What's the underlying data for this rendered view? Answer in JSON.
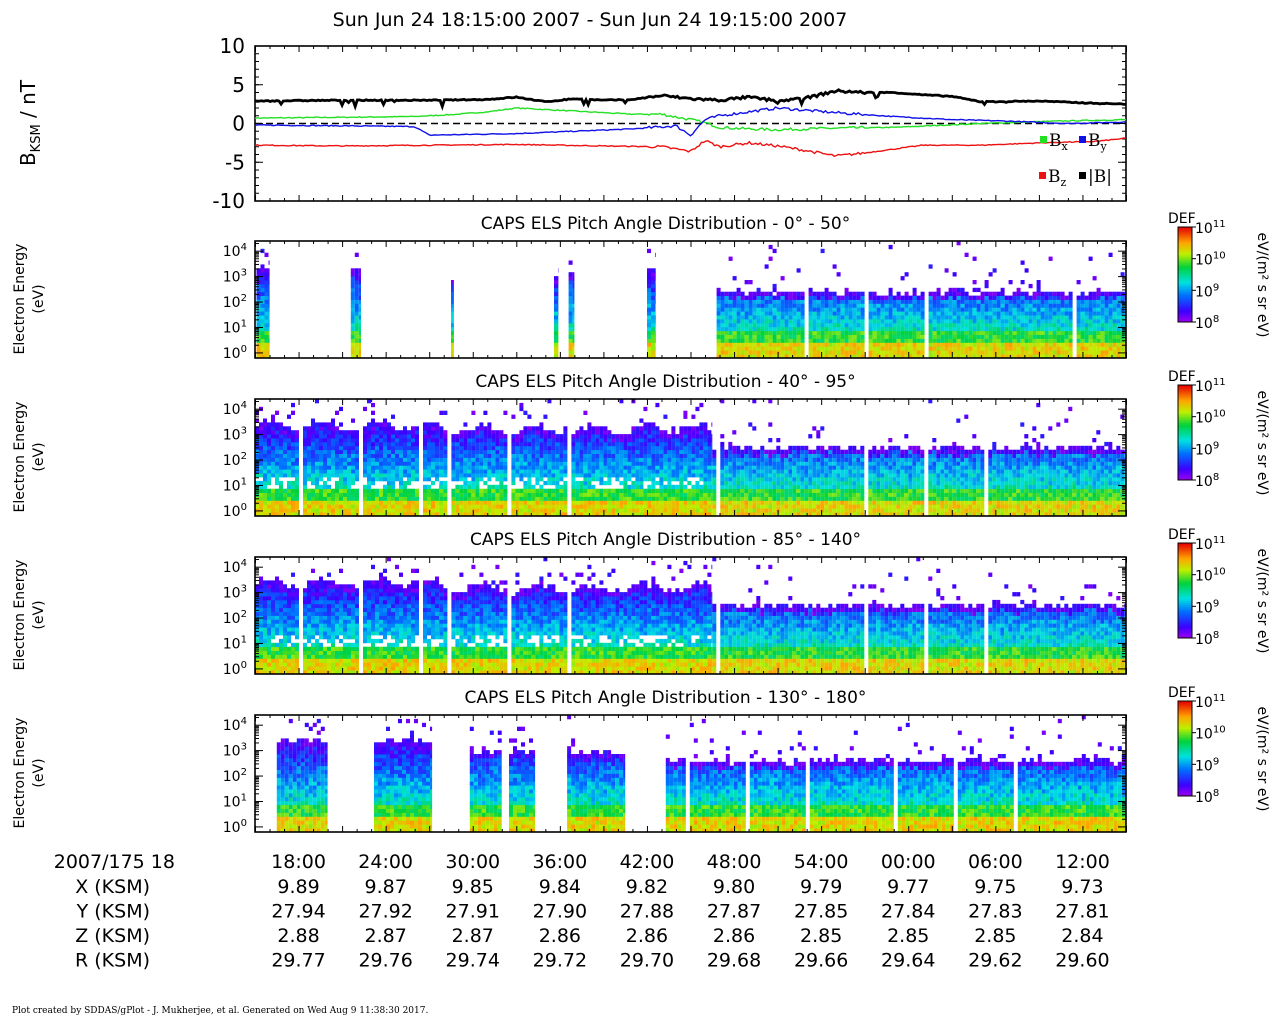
{
  "page_title": "Sun Jun 24 18:15:00 2007 - Sun Jun 24 19:15:00 2007",
  "footer": "Plot created by SDDAS/gPlot - J. Mukherjee, et al.  Generated on Wed Aug 9 11:38:30 2017.",
  "chart_data": [
    {
      "type": "line",
      "ylabel": "B_KSM / nT",
      "ylim": [
        -10,
        10
      ],
      "yticks": [
        -10,
        -5,
        0,
        5,
        10
      ],
      "zero_line": "dashed",
      "x_range_min": [
        0,
        60
      ],
      "legend": [
        {
          "label": "Bx",
          "color": "#22e022"
        },
        {
          "label": "By",
          "color": "#1010e8"
        },
        {
          "label": "Bz",
          "color": "#ee1111"
        },
        {
          "label": "|B|",
          "color": "#000000"
        }
      ],
      "series": [
        {
          "name": "Bx",
          "color": "#22e022",
          "x": [
            0,
            6,
            11,
            14,
            16,
            18,
            22,
            26,
            28,
            30,
            31,
            32,
            34,
            36,
            40,
            44,
            50,
            55,
            60
          ],
          "y": [
            0.7,
            0.8,
            0.9,
            1.2,
            1.5,
            2.0,
            1.6,
            1.2,
            1.2,
            0.5,
            0.1,
            -0.5,
            -0.7,
            -0.8,
            -0.6,
            -0.5,
            0.0,
            0.3,
            0.5
          ]
        },
        {
          "name": "By",
          "color": "#1010e8",
          "x": [
            0,
            6,
            11,
            12,
            18,
            22,
            26,
            29,
            30,
            31,
            32,
            36,
            40,
            44,
            48,
            52,
            56,
            60
          ],
          "y": [
            -0.2,
            -0.3,
            -0.4,
            -1.5,
            -1.3,
            -1.0,
            -0.7,
            -0.3,
            -1.5,
            0.5,
            1.0,
            2.0,
            1.4,
            0.9,
            0.5,
            0.3,
            0.0,
            0.2
          ]
        },
        {
          "name": "Bz",
          "color": "#ee1111",
          "x": [
            0,
            6,
            12,
            18,
            24,
            28,
            30,
            31,
            32,
            34,
            36,
            38,
            40,
            42,
            46,
            50,
            54,
            58,
            60
          ],
          "y": [
            -2.8,
            -2.9,
            -2.8,
            -2.7,
            -2.9,
            -3.0,
            -3.6,
            -2.2,
            -3.0,
            -2.5,
            -2.9,
            -3.5,
            -4.2,
            -3.8,
            -2.8,
            -2.8,
            -2.5,
            -2.3,
            -1.9
          ]
        },
        {
          "name": "|B|",
          "color": "#000000",
          "x": [
            0,
            6,
            12,
            16,
            18,
            20,
            22,
            24,
            26,
            28,
            30,
            32,
            34,
            36,
            38,
            40,
            42,
            44,
            46,
            48,
            50,
            54,
            58,
            60
          ],
          "y": [
            2.9,
            3.0,
            3.0,
            3.1,
            3.4,
            2.8,
            3.2,
            3.0,
            3.1,
            3.6,
            3.2,
            3.0,
            3.4,
            2.9,
            3.3,
            4.2,
            4.0,
            4.0,
            3.7,
            3.5,
            2.8,
            2.9,
            2.6,
            2.5
          ]
        }
      ]
    },
    {
      "type": "heatmap",
      "title": "CAPS ELS Pitch Angle Distribution - 0° - 50°",
      "ylabel": "Electron Energy (eV)",
      "colorbar_title": "DEF",
      "colorbar_unit": "eV/(m² s sr eV)",
      "colorbar_ticks": [
        "10^11",
        "10^10",
        "10^9",
        "10^8"
      ],
      "colorbar_range_log10": [
        8,
        11
      ],
      "y_range_log10": [
        -0.2,
        4.4
      ],
      "yticks": [
        "10^4",
        "10^3",
        "10^2",
        "10^1",
        "10^0"
      ],
      "segments": [
        {
          "x": [
            0.1,
            1.0
          ],
          "top": 3.4,
          "mode": "patch"
        },
        {
          "x": [
            6.6,
            7.3
          ],
          "top": 3.3,
          "mode": "patch"
        },
        {
          "x": [
            13.5,
            13.7
          ],
          "top": 3.0,
          "mode": "patch"
        },
        {
          "x": [
            20.6,
            20.9
          ],
          "top": 3.1,
          "mode": "patch"
        },
        {
          "x": [
            21.6,
            22.0
          ],
          "top": 3.1,
          "mode": "patch"
        },
        {
          "x": [
            27.0,
            27.6
          ],
          "top": 3.3,
          "mode": "patch"
        },
        {
          "x": [
            31.8,
            60
          ],
          "top": 2.4,
          "mode": "full"
        }
      ]
    },
    {
      "type": "heatmap",
      "title": "CAPS ELS Pitch Angle Distribution - 40° - 95°",
      "ylabel": "Electron Energy (eV)",
      "colorbar_title": "DEF",
      "colorbar_unit": "eV/(m² s sr eV)",
      "colorbar_ticks": [
        "10^11",
        "10^10",
        "10^9",
        "10^8"
      ],
      "colorbar_range_log10": [
        8,
        11
      ],
      "y_range_log10": [
        -0.2,
        4.4
      ],
      "yticks": [
        "10^4",
        "10^3",
        "10^2",
        "10^1",
        "10^0"
      ],
      "segments": [
        {
          "x": [
            0,
            12.7
          ],
          "top": 3.4,
          "mode": "patchy"
        },
        {
          "x": [
            12.7,
            31.5
          ],
          "top": 3.2,
          "mode": "patchy"
        },
        {
          "x": [
            31.5,
            60
          ],
          "top": 2.5,
          "mode": "full"
        }
      ]
    },
    {
      "type": "heatmap",
      "title": "CAPS ELS Pitch Angle Distribution - 85° - 140°",
      "ylabel": "Electron Energy (eV)",
      "colorbar_title": "DEF",
      "colorbar_unit": "eV/(m² s sr eV)",
      "colorbar_ticks": [
        "10^11",
        "10^10",
        "10^9",
        "10^8"
      ],
      "colorbar_range_log10": [
        8,
        11
      ],
      "y_range_log10": [
        -0.2,
        4.4
      ],
      "yticks": [
        "10^4",
        "10^3",
        "10^2",
        "10^1",
        "10^0"
      ],
      "segments": [
        {
          "x": [
            0,
            12.7
          ],
          "top": 3.4,
          "mode": "patchy"
        },
        {
          "x": [
            12.7,
            31.5
          ],
          "top": 3.2,
          "mode": "patchy"
        },
        {
          "x": [
            31.5,
            60
          ],
          "top": 2.5,
          "mode": "full"
        }
      ]
    },
    {
      "type": "heatmap",
      "title": "CAPS ELS Pitch Angle Distribution - 130° - 180°",
      "ylabel": "Electron Energy (eV)",
      "colorbar_title": "DEF",
      "colorbar_unit": "eV/(m² s sr eV)",
      "colorbar_ticks": [
        "10^11",
        "10^10",
        "10^9",
        "10^8"
      ],
      "colorbar_range_log10": [
        8,
        11
      ],
      "y_range_log10": [
        -0.2,
        4.4
      ],
      "yticks": [
        "10^4",
        "10^3",
        "10^2",
        "10^1",
        "10^0"
      ],
      "segments": [
        {
          "x": [
            1.5,
            5.0
          ],
          "top": 3.4,
          "mode": "patch"
        },
        {
          "x": [
            8.2,
            12.2
          ],
          "top": 3.4,
          "mode": "patch"
        },
        {
          "x": [
            14.8,
            17.0
          ],
          "top": 3.0,
          "mode": "patch"
        },
        {
          "x": [
            17.5,
            19.3
          ],
          "top": 3.0,
          "mode": "patch"
        },
        {
          "x": [
            21.5,
            25.5
          ],
          "top": 2.9,
          "mode": "patch"
        },
        {
          "x": [
            28.3,
            60
          ],
          "top": 2.6,
          "mode": "full"
        }
      ]
    }
  ],
  "x_axis": {
    "start_label": "2007/175 18",
    "tick_minutes": [
      3,
      9,
      15,
      21,
      27,
      33,
      39,
      45,
      51,
      57
    ],
    "tick_labels": [
      "18:00",
      "24:00",
      "30:00",
      "36:00",
      "42:00",
      "48:00",
      "54:00",
      "00:00",
      "06:00",
      "12:00"
    ],
    "rows": [
      {
        "label": "X (KSM)",
        "values": [
          "9.89",
          "9.87",
          "9.85",
          "9.84",
          "9.82",
          "9.80",
          "9.79",
          "9.77",
          "9.75",
          "9.73"
        ]
      },
      {
        "label": "Y (KSM)",
        "values": [
          "27.94",
          "27.92",
          "27.91",
          "27.90",
          "27.88",
          "27.87",
          "27.85",
          "27.84",
          "27.83",
          "27.81"
        ]
      },
      {
        "label": "Z (KSM)",
        "values": [
          "2.88",
          "2.87",
          "2.87",
          "2.86",
          "2.86",
          "2.86",
          "2.85",
          "2.85",
          "2.85",
          "2.84"
        ]
      },
      {
        "label": "R (KSM)",
        "values": [
          "29.77",
          "29.76",
          "29.74",
          "29.72",
          "29.70",
          "29.68",
          "29.66",
          "29.64",
          "29.62",
          "29.60"
        ]
      }
    ]
  }
}
